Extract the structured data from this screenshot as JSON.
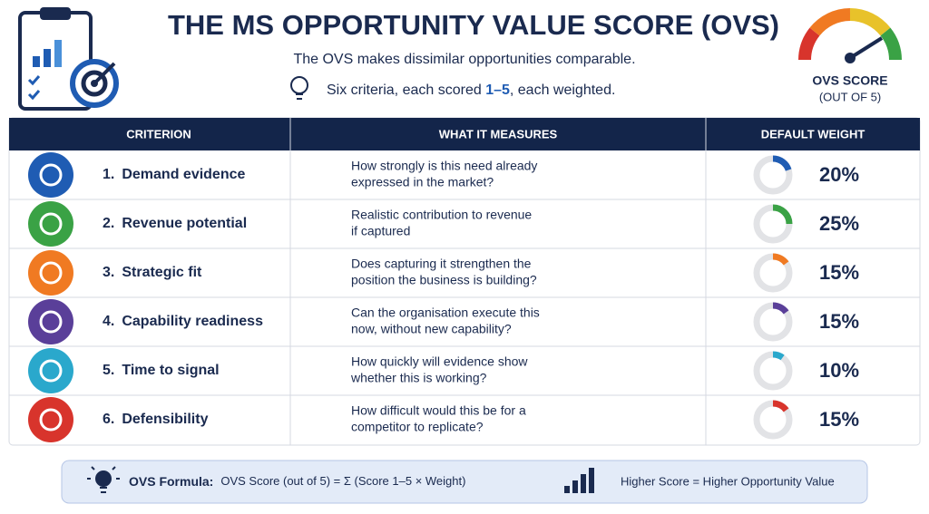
{
  "header": {
    "title": "THE MS OPPORTUNITY VALUE SCORE (OVS)",
    "subtitle": "The OVS makes dissimilar opportunities comparable.",
    "criteria_line": {
      "before": "Six criteria,  each scored ",
      "highlight": "1–5",
      "after": ",  each weighted."
    },
    "gauge_label": "OVS SCORE",
    "gauge_sublabel": "(OUT OF 5)"
  },
  "table": {
    "headers": [
      "CRITERION",
      "WHAT IT MEASURES",
      "DEFAULT WEIGHT"
    ],
    "rows": [
      {
        "number": "1.",
        "name": "Demand evidence",
        "measure": [
          "How strongly is this need already",
          "expressed in the market?"
        ],
        "weight": 20,
        "weight_label": "20%",
        "color": "#1f5cb3"
      },
      {
        "number": "2.",
        "name": "Revenue potential",
        "measure": [
          "Realistic contribution to revenue",
          "if captured"
        ],
        "weight": 25,
        "weight_label": "25%",
        "color": "#3aa245"
      },
      {
        "number": "3.",
        "name": "Strategic fit",
        "measure": [
          "Does capturing it strengthen the",
          "position the business is building?"
        ],
        "weight": 15,
        "weight_label": "15%",
        "color": "#f07a22"
      },
      {
        "number": "4.",
        "name": "Capability readiness",
        "measure": [
          "Can the organisation execute this",
          "now, without new capability?"
        ],
        "weight": 15,
        "weight_label": "15%",
        "color": "#5a3f99"
      },
      {
        "number": "5.",
        "name": "Time to signal",
        "measure": [
          "How quickly will evidence show",
          "whether this is working?"
        ],
        "weight": 10,
        "weight_label": "10%",
        "color": "#2aa8cc"
      },
      {
        "number": "6.",
        "name": "Defensibility",
        "measure": [
          "How difficult would this be for a",
          "competitor to replicate?"
        ],
        "weight": 15,
        "weight_label": "15%",
        "color": "#d8342c"
      }
    ]
  },
  "footer": {
    "formula_label": "OVS Formula:",
    "formula": "OVS Score (out of 5) = Σ (Score 1–5  × Weight)",
    "note": "Higher Score  =  Higher Opportunity Value"
  }
}
